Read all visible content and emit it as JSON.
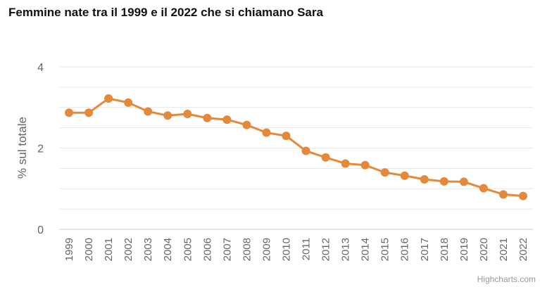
{
  "chart_data": {
    "type": "line",
    "title": "Femmine nate tra il 1999 e il 2022 che si chiamano Sara",
    "ylabel": "% sul totale",
    "xlabel": "",
    "ylim": [
      0,
      4
    ],
    "y_ticks": [
      0,
      2,
      4
    ],
    "grid": true,
    "legend": "none",
    "categories": [
      "1999",
      "2000",
      "2001",
      "2002",
      "2003",
      "2004",
      "2005",
      "2006",
      "2007",
      "2008",
      "2009",
      "2010",
      "2011",
      "2012",
      "2013",
      "2014",
      "2015",
      "2016",
      "2017",
      "2018",
      "2019",
      "2020",
      "2021",
      "2022"
    ],
    "series": [
      {
        "color": "#E5883A",
        "values": [
          2.87,
          2.87,
          3.22,
          3.12,
          2.9,
          2.8,
          2.84,
          2.74,
          2.7,
          2.57,
          2.38,
          2.3,
          1.93,
          1.77,
          1.62,
          1.58,
          1.4,
          1.32,
          1.23,
          1.18,
          1.17,
          1.01,
          0.86,
          0.82
        ]
      }
    ]
  },
  "credits": "Highcharts.com"
}
